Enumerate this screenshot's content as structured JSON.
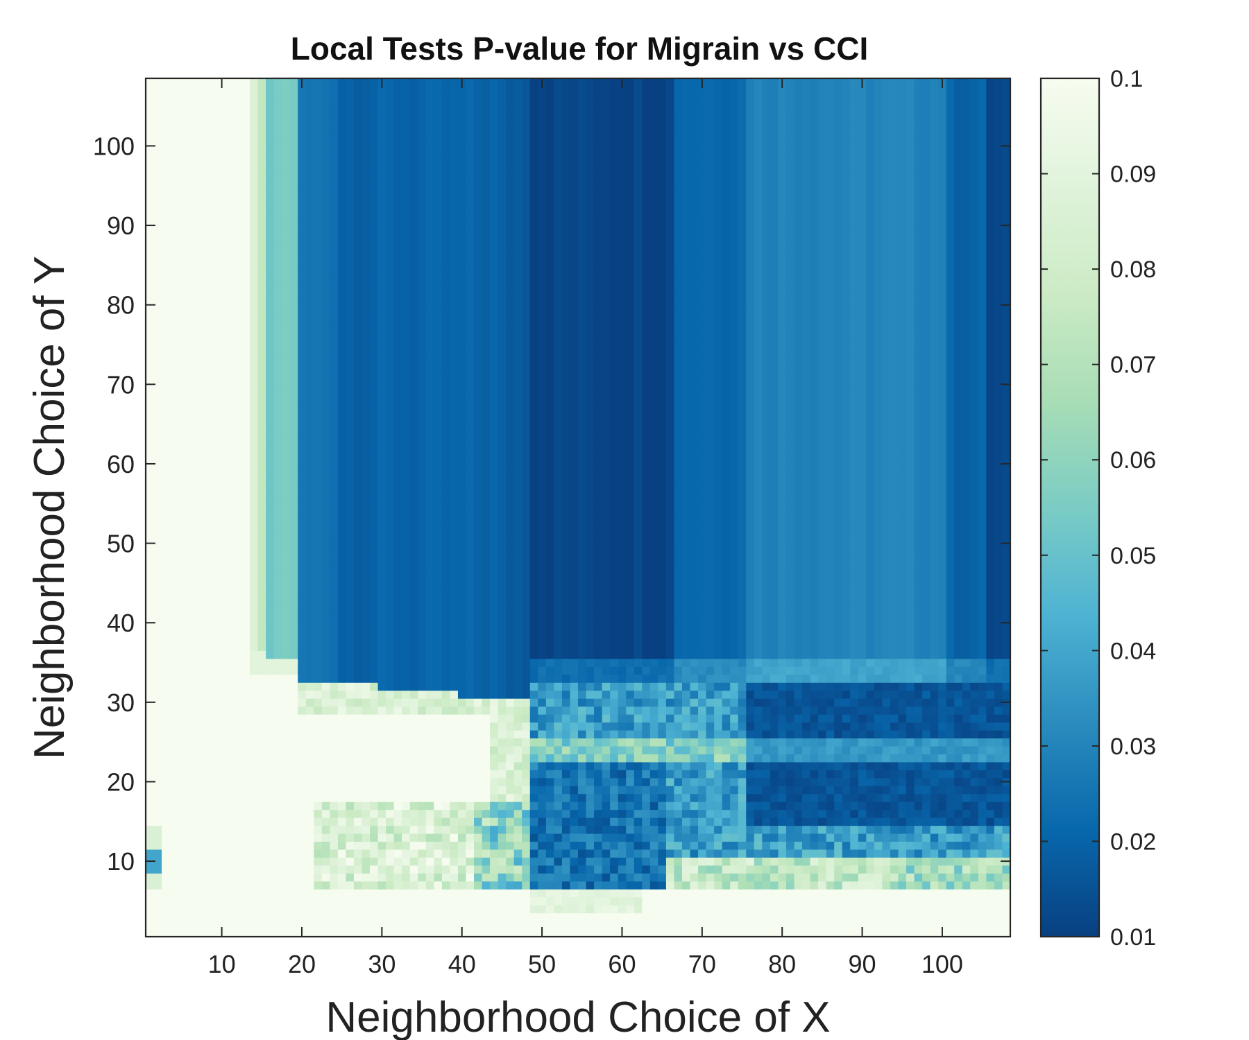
{
  "chart_data": {
    "type": "heatmap",
    "title": "Local Tests P-value for Migrain vs CCI",
    "xlabel": "Neighborhood Choice of X",
    "ylabel": "Neighborhood Choice of Y",
    "xlim": [
      1,
      108
    ],
    "ylim": [
      1,
      108
    ],
    "x_ticks": [
      10,
      20,
      30,
      40,
      50,
      60,
      70,
      80,
      90,
      100
    ],
    "y_ticks": [
      10,
      20,
      30,
      40,
      50,
      60,
      70,
      80,
      90,
      100
    ],
    "colorbar": {
      "min": 0.01,
      "max": 0.1,
      "ticks": [
        "0.1",
        "0.09",
        "0.08",
        "0.07",
        "0.06",
        "0.05",
        "0.04",
        "0.03",
        "0.02",
        "0.01"
      ],
      "colors": [
        "#f7fcf0",
        "#e0f3db",
        "#ccebc5",
        "#a8ddb5",
        "#7bccc4",
        "#4eb3d3",
        "#2b8cbe",
        "#0868ac",
        "#084081"
      ]
    },
    "grid": false,
    "column_profile_above_y36": [
      {
        "x_from": 1,
        "x_to": 13,
        "p": 0.1
      },
      {
        "x_from": 14,
        "x_to": 14,
        "p": 0.085
      },
      {
        "x_from": 15,
        "x_to": 15,
        "p": 0.075
      },
      {
        "x_from": 16,
        "x_to": 16,
        "p": 0.05
      },
      {
        "x_from": 17,
        "x_to": 19,
        "p": 0.055
      },
      {
        "x_from": 20,
        "x_to": 24,
        "p": 0.025
      },
      {
        "x_from": 25,
        "x_to": 44,
        "p": 0.02
      },
      {
        "x_from": 45,
        "x_to": 48,
        "p": 0.018
      },
      {
        "x_from": 49,
        "x_to": 66,
        "p": 0.012
      },
      {
        "x_from": 67,
        "x_to": 75,
        "p": 0.022
      },
      {
        "x_from": 76,
        "x_to": 100,
        "p": 0.03
      },
      {
        "x_from": 101,
        "x_to": 105,
        "p": 0.02
      },
      {
        "x_from": 106,
        "x_to": 108,
        "p": 0.012
      }
    ],
    "regions": [
      {
        "description": "high p-value",
        "x_range": [
          1,
          108
        ],
        "y_range": [
          1,
          6
        ],
        "p": 0.1
      },
      {
        "description": "high p-value",
        "x_range": [
          1,
          48
        ],
        "y_range": [
          7,
          30
        ],
        "p": 0.1
      },
      {
        "description": "mixed band",
        "x_range": [
          49,
          108
        ],
        "y_range": [
          7,
          35
        ],
        "p": 0.025
      },
      {
        "description": "low p-value",
        "x_range": [
          76,
          108
        ],
        "y_range": [
          15,
          32
        ],
        "p": 0.013
      }
    ]
  }
}
